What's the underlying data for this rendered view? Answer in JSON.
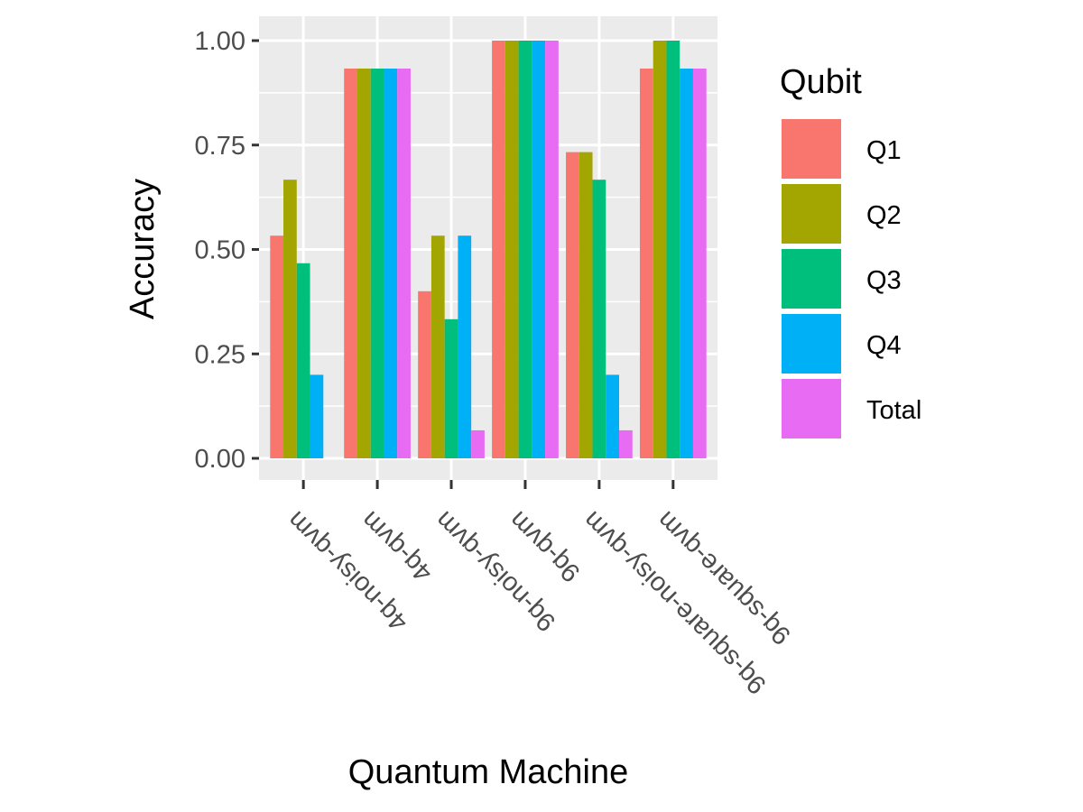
{
  "chart_data": {
    "type": "bar",
    "xlabel": "Quantum Machine",
    "ylabel": "Accuracy",
    "categories": [
      "4q-noisy-qvm",
      "4q-qvm",
      "9q-noisy-qvm",
      "9q-qvm",
      "9q-square-noisy-qvm",
      "9q-square-qvm"
    ],
    "series": [
      {
        "name": "Q1",
        "color": "#F8766D",
        "values": [
          0.533,
          0.933,
          0.4,
          1.0,
          0.733,
          0.933
        ]
      },
      {
        "name": "Q2",
        "color": "#A3A500",
        "values": [
          0.667,
          0.933,
          0.533,
          1.0,
          0.733,
          1.0
        ]
      },
      {
        "name": "Q3",
        "color": "#00BF7D",
        "values": [
          0.467,
          0.933,
          0.333,
          1.0,
          0.667,
          1.0
        ]
      },
      {
        "name": "Q4",
        "color": "#00B0F6",
        "values": [
          0.2,
          0.933,
          0.533,
          1.0,
          0.2,
          0.933
        ]
      },
      {
        "name": "Total",
        "color": "#E76BF3",
        "values": [
          0.0,
          0.933,
          0.067,
          1.0,
          0.067,
          0.933
        ]
      }
    ],
    "ylim": [
      0,
      1
    ],
    "yticks": [
      "0.00",
      "0.25",
      "0.50",
      "0.75",
      "1.00"
    ],
    "grid": true,
    "legend": {
      "title": "Qubit",
      "placement": "right"
    }
  }
}
